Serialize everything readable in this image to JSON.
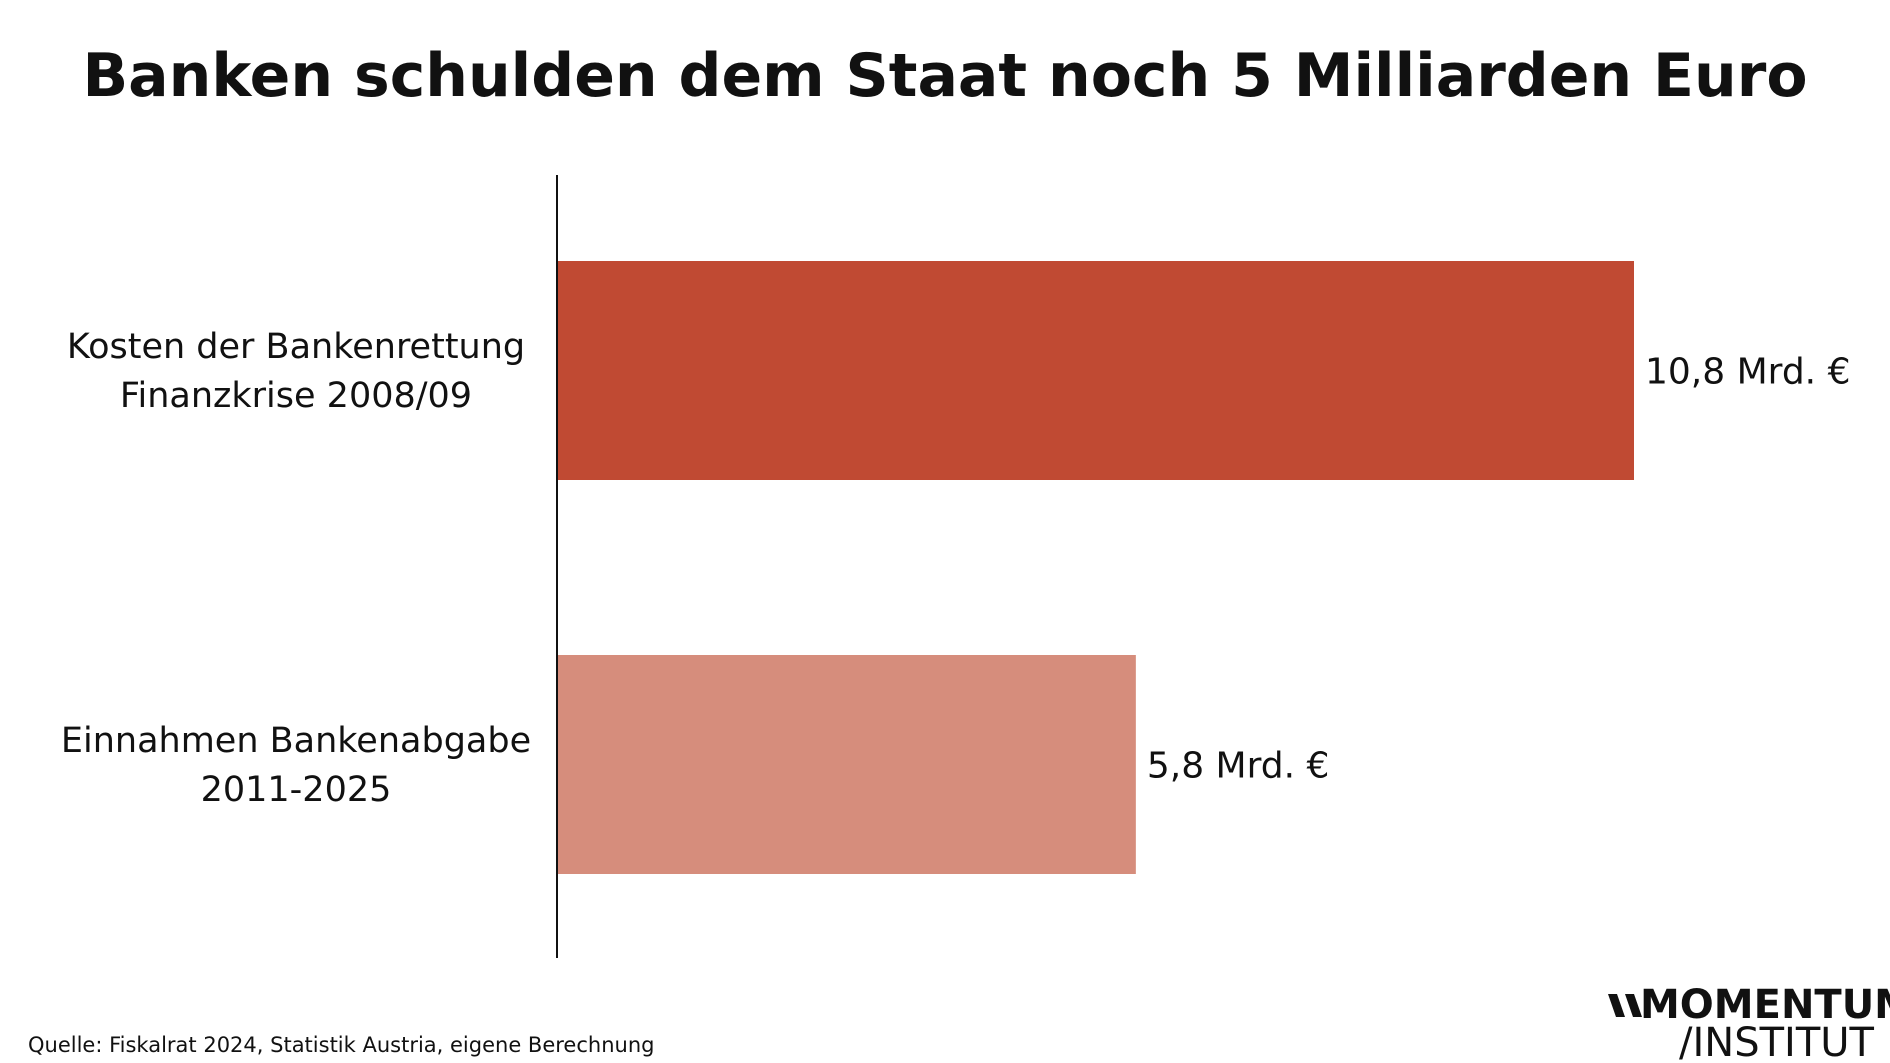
{
  "chart_data": {
    "type": "bar",
    "orientation": "horizontal",
    "title": "Banken schulden dem Staat noch 5 Milliarden Euro",
    "categories": [
      [
        "Kosten der Bankenrettung",
        "Finanzkrise 2008/09"
      ],
      [
        "Einnahmen Bankenabgabe",
        "2011-2025"
      ]
    ],
    "values": [
      10.8,
      5.8
    ],
    "value_labels": [
      "10,8 Mrd. €",
      "5,8 Mrd. €"
    ],
    "bar_colors": [
      "#c04a33",
      "#d68d7c"
    ],
    "xlim": [
      0,
      12
    ],
    "grid": false,
    "legend": "none"
  },
  "source": "Quelle: Fiskalrat 2024, Statistik Austria, eigene Berechnung",
  "logo": {
    "line1": "MOMENTUM",
    "line2": "/INSTITUT"
  },
  "colors": {
    "text": "#111111",
    "axis": "#111111",
    "background": "#ffffff"
  }
}
